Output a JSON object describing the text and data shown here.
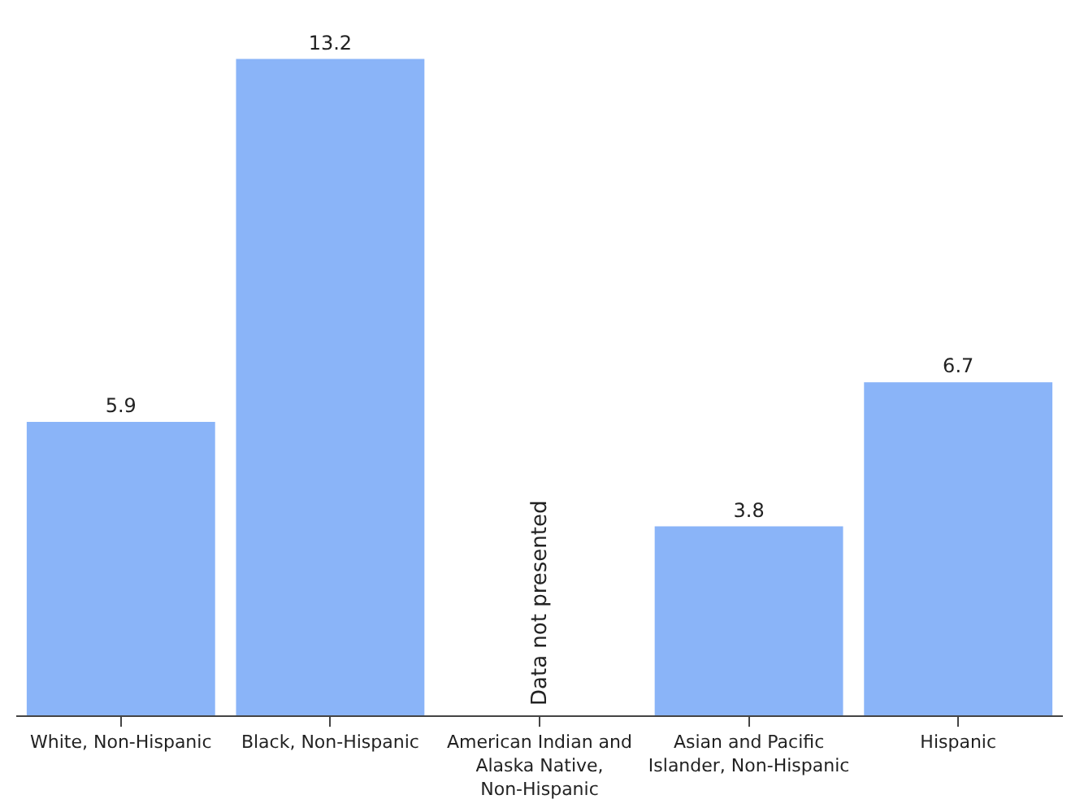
{
  "chart_data": {
    "type": "bar",
    "categories": [
      "White, Non-Hispanic",
      "Black, Non-Hispanic",
      "American Indian and\nAlaska Native,\nNon-Hispanic",
      "Asian and Pacific\nIslander, Non-Hispanic",
      "Hispanic"
    ],
    "values": [
      5.9,
      13.2,
      null,
      3.8,
      6.7
    ],
    "color": "#8ab4f8",
    "data_labels": true,
    "legend": false,
    "tick_labels": "x",
    "annotations": [
      "Data not presented"
    ]
  }
}
